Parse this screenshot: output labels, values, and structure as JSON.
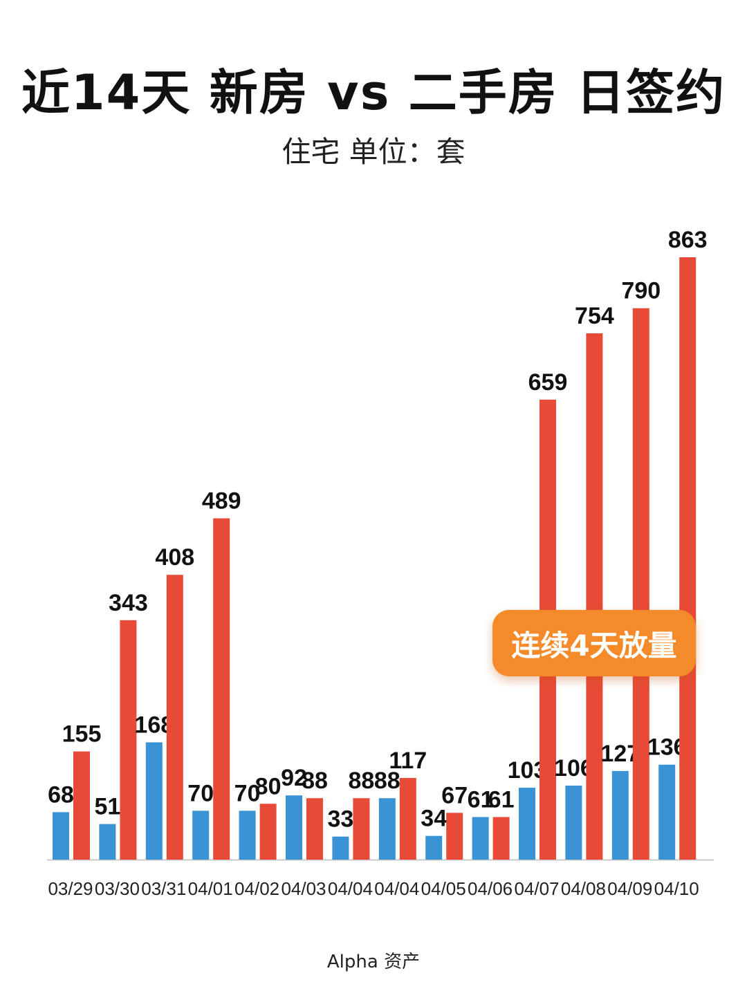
{
  "header": {
    "title": "近14天 新房 vs 二手房 日签约",
    "subtitle": "住宅 单位：套"
  },
  "annotation": {
    "text": "连续4天放量"
  },
  "footer": {
    "text": "Alpha 资产"
  },
  "colors": {
    "new": "#3a93d4",
    "second": "#e74a36",
    "badge": "#f58a2a"
  },
  "chart_data": {
    "type": "bar",
    "categories": [
      "03/29",
      "03/30",
      "03/31",
      "04/01",
      "04/02",
      "04/03",
      "04/04",
      "04/04",
      "04/05",
      "04/06",
      "04/07",
      "04/08",
      "04/09",
      "04/10"
    ],
    "series": [
      {
        "values": [
          68,
          51,
          168,
          70,
          70,
          92,
          33,
          88,
          34,
          61,
          103,
          106,
          127,
          136
        ]
      },
      {
        "values": [
          155,
          343,
          408,
          489,
          80,
          88,
          88,
          117,
          67,
          61,
          659,
          754,
          790,
          863
        ]
      }
    ],
    "ylim": [
      0,
      950
    ],
    "grid": false,
    "legend": "none"
  }
}
